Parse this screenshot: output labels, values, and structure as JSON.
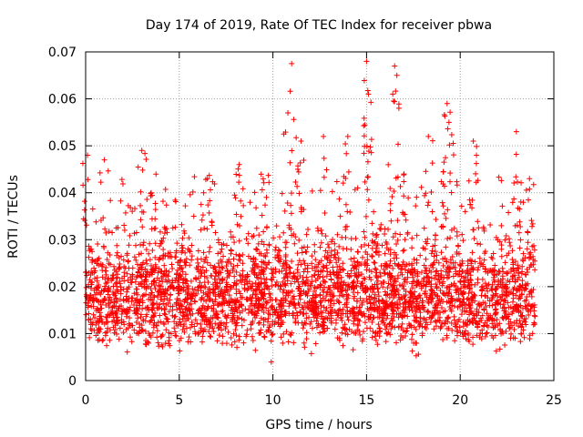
{
  "chart_data": {
    "type": "scatter",
    "title": "Day 174 of 2019, Rate Of TEC Index for receiver pbwa",
    "xlabel": "GPS time / hours",
    "ylabel": "ROTI / TECUs",
    "xlim": [
      0,
      25
    ],
    "ylim": [
      0,
      0.07
    ],
    "x_ticks": [
      0,
      5,
      10,
      15,
      20,
      25
    ],
    "y_ticks": [
      0,
      0.01,
      0.02,
      0.03,
      0.04,
      0.05,
      0.06,
      0.07
    ],
    "x_tick_labels": [
      "0",
      "5",
      "10",
      "15",
      "20",
      "25"
    ],
    "y_tick_labels": [
      "0",
      "0.01",
      "0.02",
      "0.03",
      "0.04",
      "0.05",
      "0.06",
      "0.07"
    ],
    "grid": true,
    "marker": "+",
    "series_color": "#ff0000",
    "series": [
      {
        "name": "ROTI",
        "x_range_hours": [
          0,
          24
        ],
        "bulk_y_range": [
          0.005,
          0.03
        ],
        "typical_y": 0.014,
        "notable_points": [
          {
            "x": 0.1,
            "y": 0.048
          },
          {
            "x": 1.0,
            "y": 0.047
          },
          {
            "x": 3.0,
            "y": 0.049
          },
          {
            "x": 3.5,
            "y": 0.04
          },
          {
            "x": 6.5,
            "y": 0.043
          },
          {
            "x": 8.2,
            "y": 0.046
          },
          {
            "x": 10.8,
            "y": 0.057
          },
          {
            "x": 11.0,
            "y": 0.0675
          },
          {
            "x": 11.5,
            "y": 0.051
          },
          {
            "x": 12.7,
            "y": 0.052
          },
          {
            "x": 14.0,
            "y": 0.052
          },
          {
            "x": 15.0,
            "y": 0.068
          },
          {
            "x": 15.1,
            "y": 0.061
          },
          {
            "x": 16.5,
            "y": 0.067
          },
          {
            "x": 16.4,
            "y": 0.061
          },
          {
            "x": 17.0,
            "y": 0.044
          },
          {
            "x": 18.3,
            "y": 0.052
          },
          {
            "x": 19.3,
            "y": 0.059
          },
          {
            "x": 19.4,
            "y": 0.055
          },
          {
            "x": 20.7,
            "y": 0.051
          },
          {
            "x": 23.0,
            "y": 0.053
          },
          {
            "x": 23.7,
            "y": 0.043
          }
        ],
        "minimum_y": 0.003
      }
    ]
  }
}
